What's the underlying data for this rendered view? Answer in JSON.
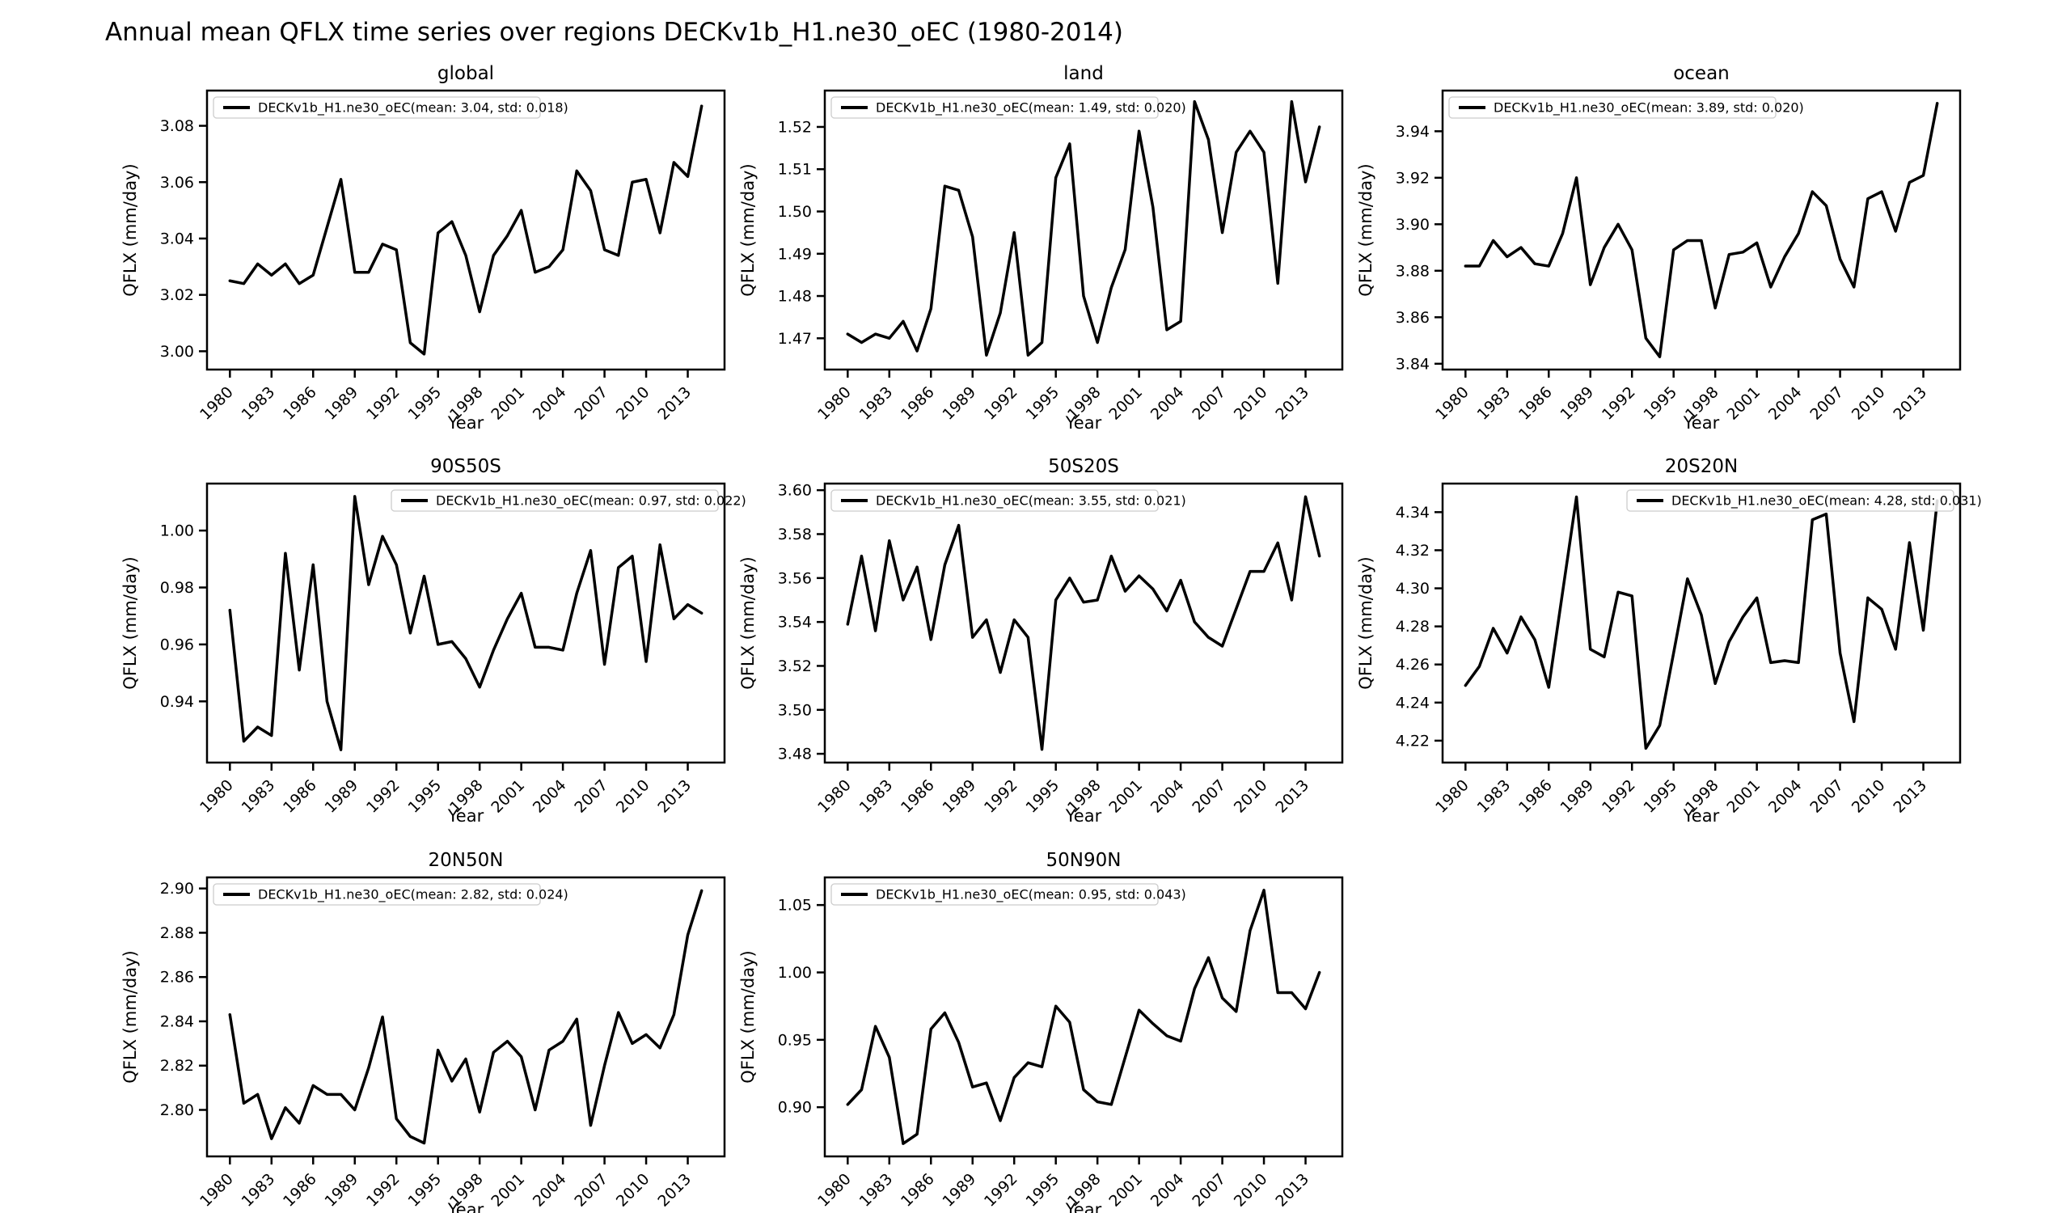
{
  "figure": {
    "title": "Annual mean QFLX time series over regions DECKv1b_H1.ne30_oEC (1980-2014)"
  },
  "chart_data": {
    "type": "line",
    "xlabel": "Year",
    "ylabel": "QFLX (mm/day)",
    "line_color": "#000000",
    "legend_border_color": "#cccccc",
    "x_years": [
      1980,
      1981,
      1982,
      1983,
      1984,
      1985,
      1986,
      1987,
      1988,
      1989,
      1990,
      1991,
      1992,
      1993,
      1994,
      1995,
      1996,
      1997,
      1998,
      1999,
      2000,
      2001,
      2002,
      2003,
      2004,
      2005,
      2006,
      2007,
      2008,
      2009,
      2010,
      2011,
      2012,
      2013,
      2014
    ],
    "xticks": [
      1980,
      1983,
      1986,
      1989,
      1992,
      1995,
      1998,
      2001,
      2004,
      2007,
      2010,
      2013
    ],
    "xlim": [
      1978.35,
      2015.65
    ],
    "grid": false,
    "charts": [
      {
        "id": "global",
        "title": "global",
        "legend": "DECKv1b_H1.ne30_oEC(mean: 3.04, std: 0.018)",
        "legend_loc": "upper-left",
        "ylim": [
          2.9935,
          3.0925
        ],
        "yticks": [
          "3.00",
          "3.02",
          "3.04",
          "3.06",
          "3.08"
        ],
        "values": [
          3.025,
          3.024,
          3.031,
          3.027,
          3.031,
          3.024,
          3.027,
          3.044,
          3.061,
          3.028,
          3.028,
          3.038,
          3.036,
          3.003,
          2.999,
          3.042,
          3.046,
          3.034,
          3.014,
          3.034,
          3.041,
          3.05,
          3.028,
          3.03,
          3.036,
          3.064,
          3.057,
          3.036,
          3.034,
          3.06,
          3.061,
          3.042,
          3.067,
          3.062,
          3.087
        ]
      },
      {
        "id": "land",
        "title": "land",
        "legend": "DECKv1b_H1.ne30_oEC(mean: 1.49, std: 0.020)",
        "legend_loc": "upper-left",
        "ylim": [
          1.4626,
          1.5286
        ],
        "yticks": [
          "1.47",
          "1.48",
          "1.49",
          "1.50",
          "1.51",
          "1.52"
        ],
        "values": [
          1.471,
          1.469,
          1.471,
          1.47,
          1.474,
          1.467,
          1.477,
          1.506,
          1.505,
          1.494,
          1.466,
          1.476,
          1.495,
          1.466,
          1.469,
          1.508,
          1.516,
          1.48,
          1.469,
          1.482,
          1.491,
          1.519,
          1.501,
          1.472,
          1.474,
          1.526,
          1.517,
          1.495,
          1.514,
          1.519,
          1.514,
          1.483,
          1.526,
          1.507,
          1.52
        ]
      },
      {
        "id": "ocean",
        "title": "ocean",
        "legend": "DECKv1b_H1.ne30_oEC(mean: 3.89, std: 0.020)",
        "legend_loc": "upper-left",
        "ylim": [
          3.8375,
          3.9575
        ],
        "yticks": [
          "3.84",
          "3.86",
          "3.88",
          "3.90",
          "3.92",
          "3.94"
        ],
        "values": [
          3.882,
          3.882,
          3.893,
          3.886,
          3.89,
          3.883,
          3.882,
          3.896,
          3.92,
          3.874,
          3.89,
          3.9,
          3.889,
          3.851,
          3.843,
          3.889,
          3.893,
          3.893,
          3.864,
          3.887,
          3.888,
          3.892,
          3.873,
          3.886,
          3.896,
          3.914,
          3.908,
          3.885,
          3.873,
          3.911,
          3.914,
          3.897,
          3.918,
          3.921,
          3.952
        ]
      },
      {
        "id": "90S50S",
        "title": "90S50S",
        "legend": "DECKv1b_H1.ne30_oEC(mean: 0.97, std: 0.022)",
        "legend_loc": "upper-right",
        "ylim": [
          0.9185,
          1.0165
        ],
        "yticks": [
          "0.94",
          "0.96",
          "0.98",
          "1.00"
        ],
        "values": [
          0.972,
          0.926,
          0.931,
          0.928,
          0.992,
          0.951,
          0.988,
          0.94,
          0.923,
          1.012,
          0.981,
          0.998,
          0.988,
          0.964,
          0.984,
          0.96,
          0.961,
          0.955,
          0.945,
          0.958,
          0.969,
          0.978,
          0.959,
          0.959,
          0.958,
          0.978,
          0.993,
          0.953,
          0.987,
          0.991,
          0.954,
          0.995,
          0.969,
          0.974,
          0.971
        ]
      },
      {
        "id": "50S20S",
        "title": "50S20S",
        "legend": "DECKv1b_H1.ne30_oEC(mean: 3.55, std: 0.021)",
        "legend_loc": "upper-left",
        "ylim": [
          3.476,
          3.603
        ],
        "yticks": [
          "3.48",
          "3.50",
          "3.52",
          "3.54",
          "3.56",
          "3.58",
          "3.60"
        ],
        "values": [
          3.539,
          3.57,
          3.536,
          3.577,
          3.55,
          3.565,
          3.532,
          3.566,
          3.584,
          3.533,
          3.541,
          3.517,
          3.541,
          3.533,
          3.482,
          3.55,
          3.56,
          3.549,
          3.55,
          3.57,
          3.554,
          3.561,
          3.555,
          3.545,
          3.559,
          3.54,
          3.533,
          3.529,
          3.546,
          3.563,
          3.563,
          3.576,
          3.55,
          3.597,
          3.57
        ]
      },
      {
        "id": "20S20N",
        "title": "20S20N",
        "legend": "DECKv1b_H1.ne30_oEC(mean: 4.28, std: 0.031)",
        "legend_loc": "upper-right",
        "ylim": [
          4.2085,
          4.355
        ],
        "yticks": [
          "4.22",
          "4.24",
          "4.26",
          "4.28",
          "4.30",
          "4.32",
          "4.34"
        ],
        "values": [
          4.249,
          4.259,
          4.279,
          4.266,
          4.285,
          4.273,
          4.248,
          4.298,
          4.348,
          4.268,
          4.264,
          4.298,
          4.296,
          4.216,
          4.228,
          4.266,
          4.305,
          4.286,
          4.25,
          4.272,
          4.285,
          4.295,
          4.261,
          4.262,
          4.261,
          4.336,
          4.339,
          4.266,
          4.23,
          4.295,
          4.289,
          4.268,
          4.324,
          4.278,
          4.346
        ]
      },
      {
        "id": "20N50N",
        "title": "20N50N",
        "legend": "DECKv1b_H1.ne30_oEC(mean: 2.82, std: 0.024)",
        "legend_loc": "upper-left",
        "ylim": [
          2.779,
          2.905
        ],
        "yticks": [
          "2.80",
          "2.82",
          "2.84",
          "2.86",
          "2.88",
          "2.90"
        ],
        "values": [
          2.843,
          2.803,
          2.807,
          2.787,
          2.801,
          2.794,
          2.811,
          2.807,
          2.807,
          2.8,
          2.819,
          2.842,
          2.796,
          2.788,
          2.785,
          2.827,
          2.813,
          2.823,
          2.799,
          2.826,
          2.831,
          2.824,
          2.8,
          2.827,
          2.831,
          2.841,
          2.793,
          2.82,
          2.844,
          2.83,
          2.834,
          2.828,
          2.843,
          2.879,
          2.899
        ]
      },
      {
        "id": "50N90N",
        "title": "50N90N",
        "legend": "DECKv1b_H1.ne30_oEC(mean: 0.95, std: 0.043)",
        "legend_loc": "upper-left",
        "ylim": [
          0.8635,
          1.0705
        ],
        "yticks": [
          "0.90",
          "0.95",
          "1.00",
          "1.05"
        ],
        "values": [
          0.902,
          0.913,
          0.96,
          0.937,
          0.873,
          0.88,
          0.958,
          0.97,
          0.948,
          0.915,
          0.918,
          0.89,
          0.922,
          0.933,
          0.93,
          0.975,
          0.963,
          0.913,
          0.904,
          0.902,
          0.937,
          0.972,
          0.962,
          0.953,
          0.949,
          0.988,
          1.011,
          0.981,
          0.971,
          1.031,
          1.061,
          0.985,
          0.985,
          0.973,
          1.0
        ]
      }
    ]
  }
}
